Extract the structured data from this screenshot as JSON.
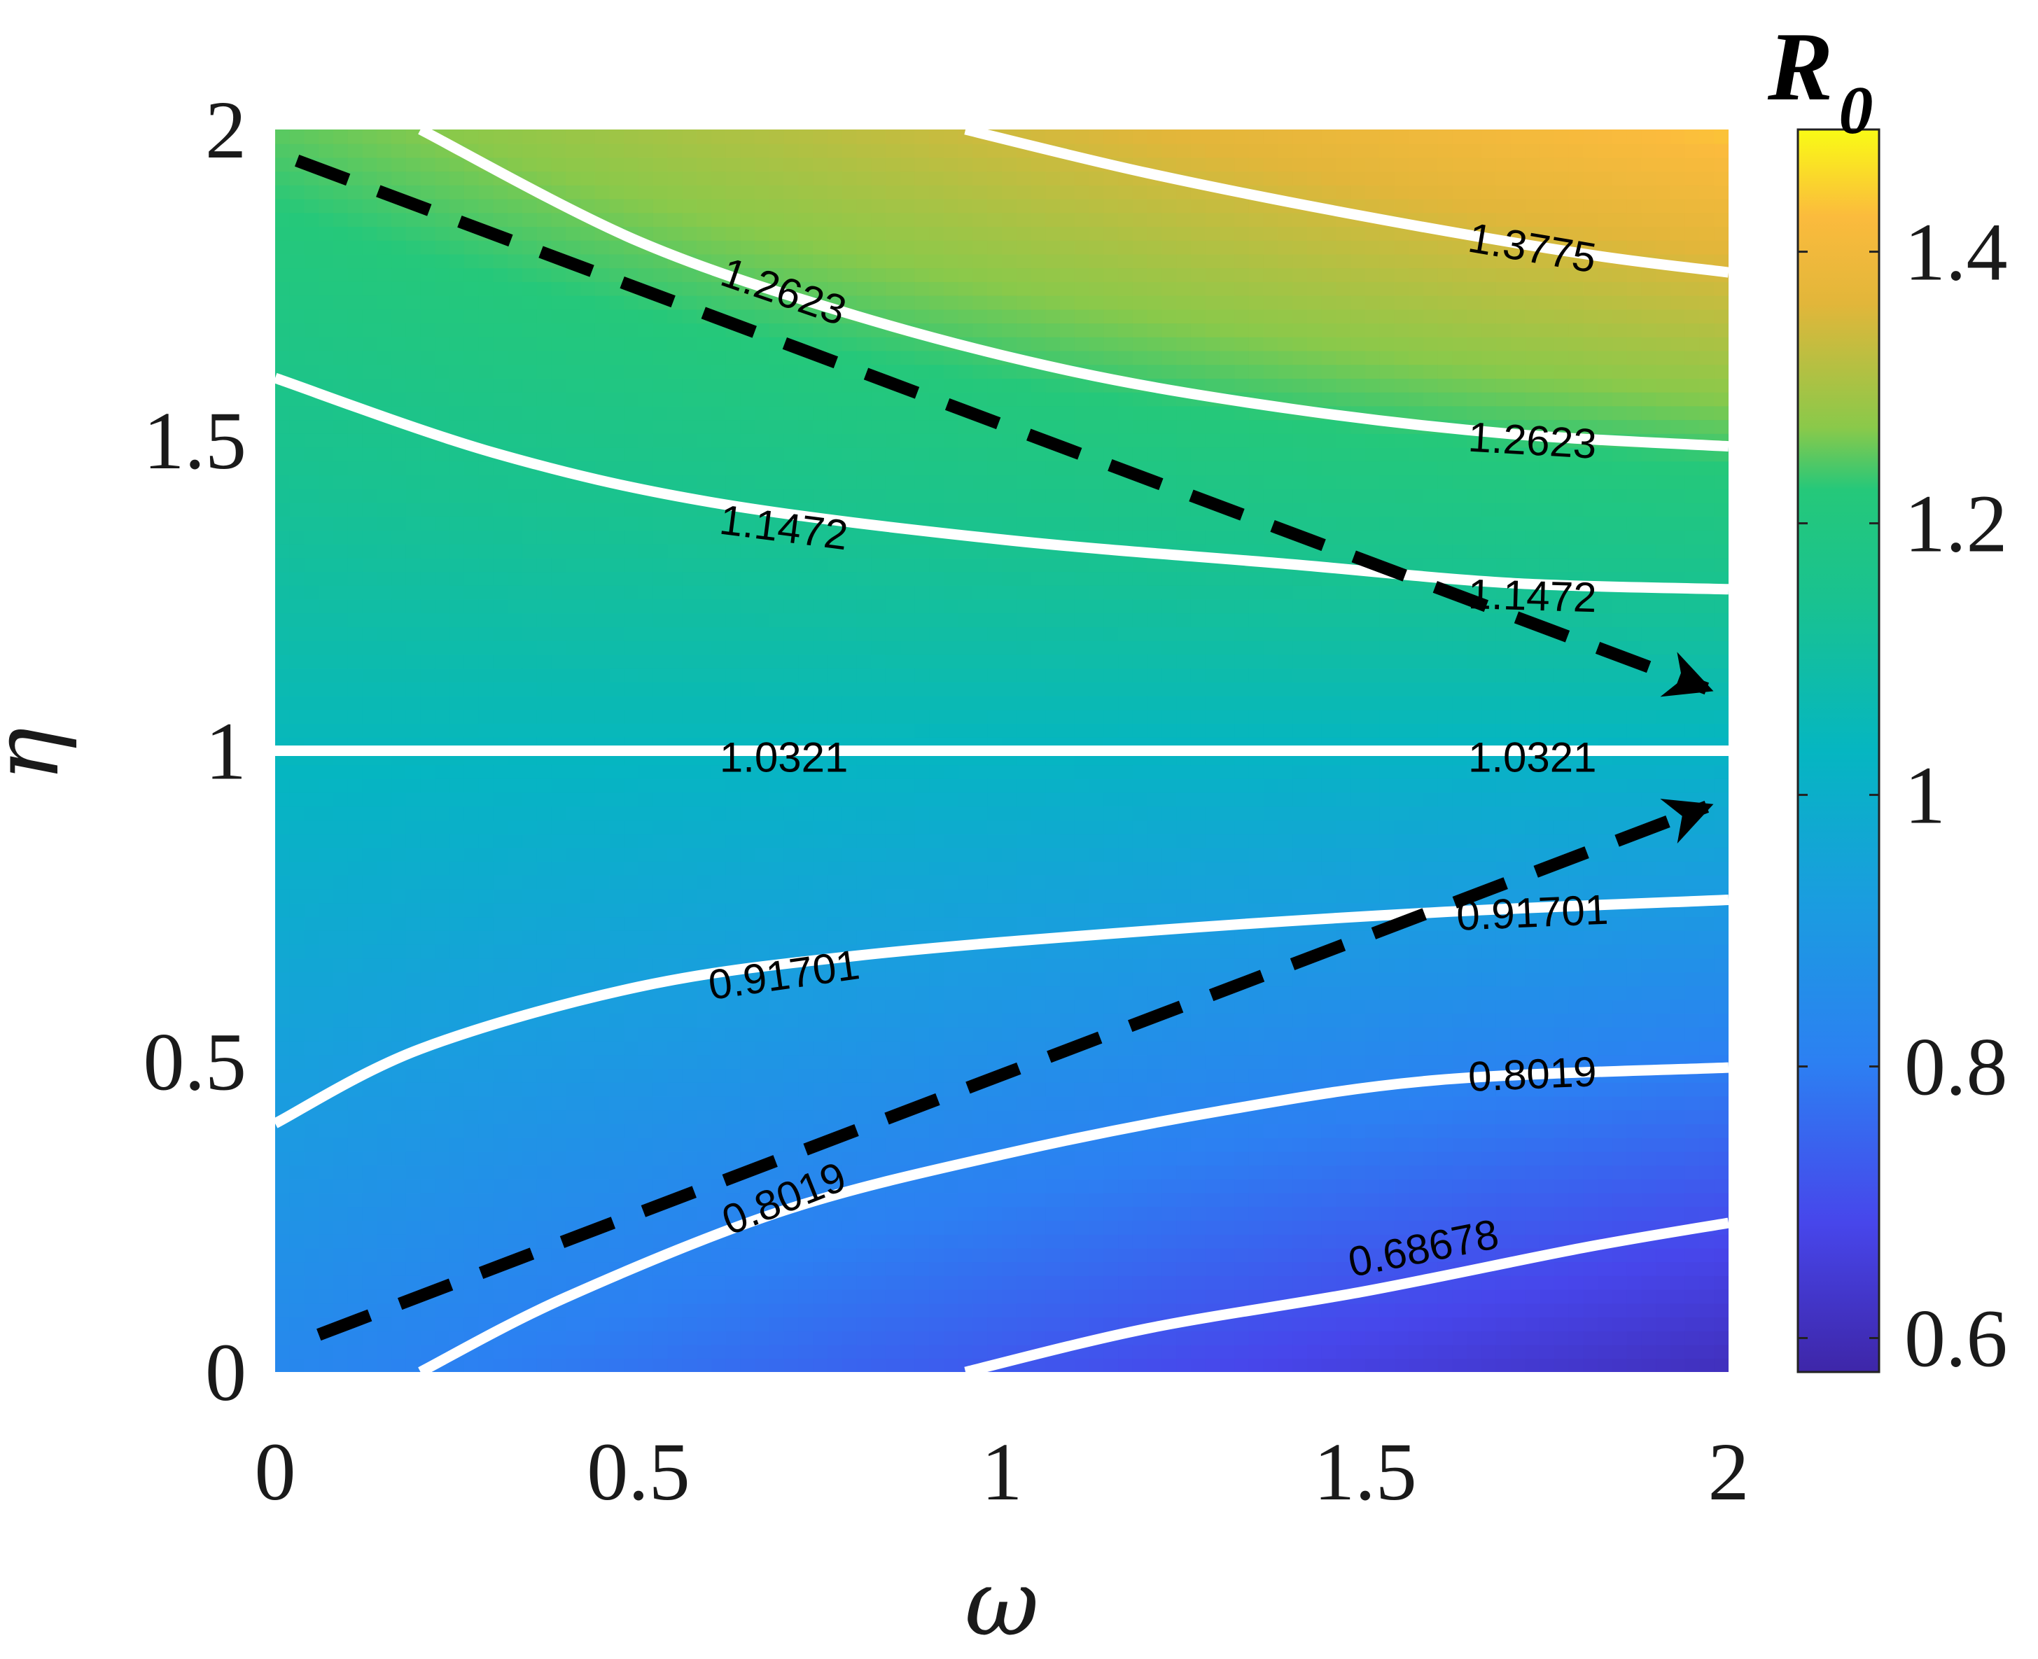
{
  "chart_data": {
    "type": "heatmap",
    "title": "",
    "xlabel": "ω",
    "ylabel": "η",
    "xlim": [
      0,
      2
    ],
    "ylim": [
      0,
      2
    ],
    "x_ticks": [
      "0",
      "0.5",
      "1",
      "1.5",
      "2"
    ],
    "y_ticks": [
      "0",
      "0.5",
      "1",
      "1.5",
      "2"
    ],
    "colorbar": {
      "label_main": "R",
      "label_sub": "0",
      "range": [
        0.575,
        1.49
      ],
      "ticks": [
        "0.6",
        "0.8",
        "1",
        "1.2",
        "1.4"
      ],
      "colormap": "parula"
    },
    "contours": [
      {
        "level": 0.68678,
        "labels": [
          {
            "text": "0.68678",
            "x": 1.58,
            "y": 0.2
          }
        ],
        "points": [
          [
            0.95,
            0.0
          ],
          [
            1.2,
            0.07
          ],
          [
            1.5,
            0.13
          ],
          [
            1.8,
            0.2
          ],
          [
            2.0,
            0.24
          ]
        ]
      },
      {
        "level": 0.8019,
        "labels": [
          {
            "text": "0.8019",
            "x": 0.7,
            "y": 0.28
          },
          {
            "text": "0.8019",
            "x": 1.73,
            "y": 0.48
          }
        ],
        "points": [
          [
            0.2,
            0.0
          ],
          [
            0.4,
            0.12
          ],
          [
            0.7,
            0.26
          ],
          [
            1.0,
            0.35
          ],
          [
            1.3,
            0.42
          ],
          [
            1.6,
            0.47
          ],
          [
            2.0,
            0.49
          ]
        ]
      },
      {
        "level": 0.91701,
        "labels": [
          {
            "text": "0.91701",
            "x": 0.7,
            "y": 0.64
          },
          {
            "text": "0.91701",
            "x": 1.73,
            "y": 0.74
          }
        ],
        "points": [
          [
            0.0,
            0.4
          ],
          [
            0.2,
            0.52
          ],
          [
            0.5,
            0.62
          ],
          [
            0.8,
            0.67
          ],
          [
            1.2,
            0.71
          ],
          [
            1.6,
            0.74
          ],
          [
            2.0,
            0.76
          ]
        ]
      },
      {
        "level": 1.0321,
        "labels": [
          {
            "text": "1.0321",
            "x": 0.7,
            "y": 0.99
          },
          {
            "text": "1.0321",
            "x": 1.73,
            "y": 0.99
          }
        ],
        "points": [
          [
            0.0,
            1.0
          ],
          [
            2.0,
            1.0
          ]
        ]
      },
      {
        "level": 1.1472,
        "labels": [
          {
            "text": "1.1472",
            "x": 0.7,
            "y": 1.36
          },
          {
            "text": "1.1472",
            "x": 1.73,
            "y": 1.25
          }
        ],
        "points": [
          [
            0.0,
            1.6
          ],
          [
            0.3,
            1.48
          ],
          [
            0.6,
            1.4
          ],
          [
            1.0,
            1.34
          ],
          [
            1.4,
            1.3
          ],
          [
            1.7,
            1.27
          ],
          [
            2.0,
            1.26
          ]
        ]
      },
      {
        "level": 1.2623,
        "labels": [
          {
            "text": "1.2623",
            "x": 0.7,
            "y": 1.74
          },
          {
            "text": "1.2623",
            "x": 1.73,
            "y": 1.5
          }
        ],
        "points": [
          [
            0.2,
            2.0
          ],
          [
            0.5,
            1.82
          ],
          [
            0.8,
            1.7
          ],
          [
            1.1,
            1.61
          ],
          [
            1.4,
            1.55
          ],
          [
            1.7,
            1.51
          ],
          [
            2.0,
            1.49
          ]
        ]
      },
      {
        "level": 1.3775,
        "labels": [
          {
            "text": "1.3775",
            "x": 1.73,
            "y": 1.81
          }
        ],
        "points": [
          [
            0.95,
            2.0
          ],
          [
            1.2,
            1.93
          ],
          [
            1.5,
            1.86
          ],
          [
            1.8,
            1.8
          ],
          [
            2.0,
            1.77
          ]
        ]
      }
    ],
    "arrows": [
      {
        "style": "dashed",
        "from": [
          0.03,
          1.95
        ],
        "to": [
          1.97,
          1.1
        ]
      },
      {
        "style": "dashed",
        "from": [
          0.06,
          0.06
        ],
        "to": [
          1.97,
          0.91
        ]
      }
    ]
  }
}
